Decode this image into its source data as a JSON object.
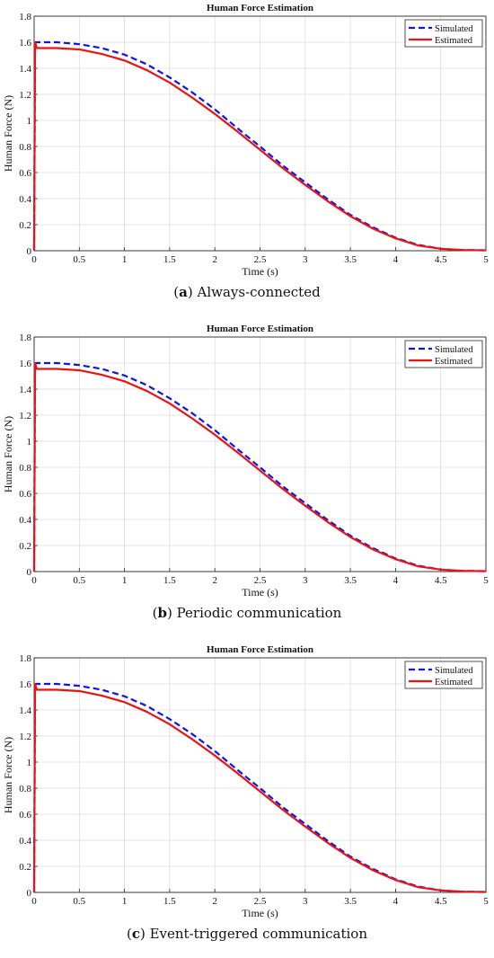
{
  "colors": {
    "simulated": "#0a14f0",
    "estimated": "#ee1111",
    "grid": "#dcdcdc",
    "axis": "#262626"
  },
  "figures": [
    {
      "letter": "a",
      "text": "Always-connected"
    },
    {
      "letter": "b",
      "text": "Periodic communication"
    },
    {
      "letter": "c",
      "text": "Event-triggered communication"
    }
  ],
  "chart_data": [
    {
      "type": "line",
      "title": "Human Force Estimation",
      "xlabel": "Time (s)",
      "ylabel": "Human Force (N)",
      "xlim": [
        0,
        5
      ],
      "ylim": [
        0,
        1.8
      ],
      "xticks": [
        "0",
        "0.5",
        "1",
        "1.5",
        "2",
        "2.5",
        "3",
        "3.5",
        "4",
        "4.5",
        "5"
      ],
      "yticks": [
        "0",
        "0.2",
        "0.4",
        "0.6",
        "0.8",
        "1",
        "1.2",
        "1.4",
        "1.6",
        "1.8"
      ],
      "grid": true,
      "legend_position": "top-right",
      "series": [
        {
          "name": "Simulated",
          "style": "dashed",
          "color": "#0a14f0",
          "x": [
            0,
            0.01,
            0.25,
            0.5,
            0.75,
            1,
            1.25,
            1.5,
            1.75,
            2,
            2.25,
            2.5,
            2.75,
            3,
            3.25,
            3.5,
            3.75,
            4,
            4.25,
            4.5,
            4.75,
            5
          ],
          "y": [
            0,
            1.6,
            1.6,
            1.585,
            1.555,
            1.505,
            1.43,
            1.33,
            1.215,
            1.085,
            0.94,
            0.8,
            0.655,
            0.525,
            0.395,
            0.275,
            0.18,
            0.1,
            0.045,
            0.015,
            0.005,
            0.003
          ]
        },
        {
          "name": "Estimated",
          "style": "solid",
          "color": "#ee1111",
          "x": [
            0,
            0.01,
            0.03,
            0.25,
            0.5,
            0.75,
            1,
            1.25,
            1.5,
            1.75,
            2,
            2.25,
            2.5,
            2.75,
            3,
            3.25,
            3.5,
            3.75,
            4,
            4.25,
            4.5,
            4.75,
            5
          ],
          "y": [
            0,
            1.6,
            1.555,
            1.555,
            1.545,
            1.51,
            1.46,
            1.385,
            1.29,
            1.175,
            1.05,
            0.915,
            0.775,
            0.635,
            0.505,
            0.38,
            0.265,
            0.17,
            0.095,
            0.04,
            0.015,
            0.005,
            0.003
          ]
        }
      ]
    },
    {
      "type": "line",
      "title": "Human Force Estimation",
      "xlabel": "Time (s)",
      "ylabel": "Human Force (N)",
      "xlim": [
        0,
        5
      ],
      "ylim": [
        0,
        1.8
      ],
      "xticks": [
        "0",
        "0.5",
        "1",
        "1.5",
        "2",
        "2.5",
        "3",
        "3.5",
        "4",
        "4.5",
        "5"
      ],
      "yticks": [
        "0",
        "0.2",
        "0.4",
        "0.6",
        "0.8",
        "1",
        "1.2",
        "1.4",
        "1.6",
        "1.8"
      ],
      "grid": true,
      "legend_position": "top-right",
      "series": [
        {
          "name": "Simulated",
          "style": "dashed",
          "color": "#0a14f0",
          "x": [
            0,
            0.01,
            0.25,
            0.5,
            0.75,
            1,
            1.25,
            1.5,
            1.75,
            2,
            2.25,
            2.5,
            2.75,
            3,
            3.25,
            3.5,
            3.75,
            4,
            4.25,
            4.5,
            4.75,
            5
          ],
          "y": [
            0,
            1.6,
            1.6,
            1.585,
            1.555,
            1.505,
            1.43,
            1.33,
            1.215,
            1.085,
            0.94,
            0.8,
            0.655,
            0.525,
            0.395,
            0.275,
            0.18,
            0.1,
            0.045,
            0.015,
            0.005,
            0.003
          ]
        },
        {
          "name": "Estimated",
          "style": "solid",
          "color": "#ee1111",
          "x": [
            0,
            0.01,
            0.03,
            0.25,
            0.5,
            0.75,
            1,
            1.25,
            1.5,
            1.75,
            2,
            2.25,
            2.5,
            2.75,
            3,
            3.25,
            3.5,
            3.75,
            4,
            4.25,
            4.5,
            4.75,
            5
          ],
          "y": [
            0,
            1.6,
            1.555,
            1.555,
            1.545,
            1.51,
            1.46,
            1.385,
            1.29,
            1.175,
            1.05,
            0.915,
            0.775,
            0.635,
            0.505,
            0.38,
            0.265,
            0.17,
            0.095,
            0.04,
            0.015,
            0.005,
            0.003
          ]
        }
      ]
    },
    {
      "type": "line",
      "title": "Human Force Estimation",
      "xlabel": "Time (s)",
      "ylabel": "Human Force (N)",
      "xlim": [
        0,
        5
      ],
      "ylim": [
        0,
        1.8
      ],
      "xticks": [
        "0",
        "0.5",
        "1",
        "1.5",
        "2",
        "2.5",
        "3",
        "3.5",
        "4",
        "4.5",
        "5"
      ],
      "yticks": [
        "0",
        "0.2",
        "0.4",
        "0.6",
        "0.8",
        "1",
        "1.2",
        "1.4",
        "1.6",
        "1.8"
      ],
      "grid": true,
      "legend_position": "top-right",
      "series": [
        {
          "name": "Simulated",
          "style": "dashed",
          "color": "#0a14f0",
          "x": [
            0,
            0.01,
            0.25,
            0.5,
            0.75,
            1,
            1.25,
            1.5,
            1.75,
            2,
            2.25,
            2.5,
            2.75,
            3,
            3.25,
            3.5,
            3.75,
            4,
            4.25,
            4.5,
            4.75,
            5
          ],
          "y": [
            0,
            1.6,
            1.6,
            1.585,
            1.555,
            1.505,
            1.43,
            1.33,
            1.215,
            1.085,
            0.94,
            0.8,
            0.655,
            0.525,
            0.395,
            0.275,
            0.18,
            0.1,
            0.045,
            0.015,
            0.005,
            0.003
          ]
        },
        {
          "name": "Estimated",
          "style": "solid",
          "color": "#ee1111",
          "x": [
            0,
            0.01,
            0.03,
            0.25,
            0.5,
            0.75,
            1,
            1.25,
            1.5,
            1.75,
            2,
            2.25,
            2.5,
            2.75,
            3,
            3.25,
            3.5,
            3.75,
            4,
            4.25,
            4.5,
            4.75,
            5
          ],
          "y": [
            0,
            1.6,
            1.555,
            1.555,
            1.545,
            1.51,
            1.46,
            1.385,
            1.29,
            1.175,
            1.05,
            0.915,
            0.775,
            0.635,
            0.505,
            0.38,
            0.265,
            0.17,
            0.095,
            0.04,
            0.015,
            0.005,
            0.003
          ]
        }
      ]
    }
  ]
}
